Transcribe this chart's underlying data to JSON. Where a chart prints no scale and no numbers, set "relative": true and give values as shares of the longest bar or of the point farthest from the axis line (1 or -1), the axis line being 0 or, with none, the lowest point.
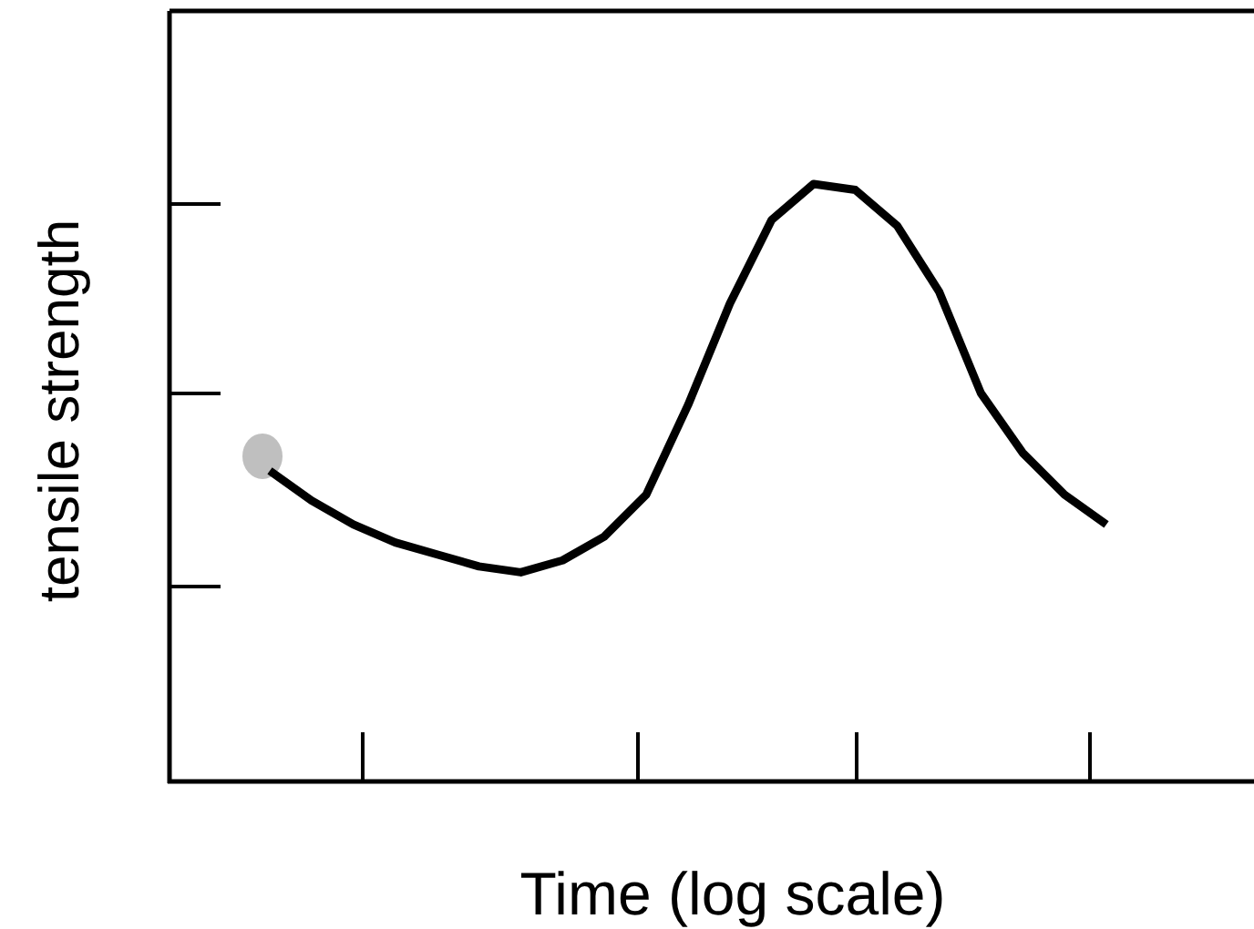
{
  "chart_data": {
    "type": "line",
    "xlabel": "Time (log scale)",
    "ylabel": "tensile strength",
    "relative": true,
    "categories": [
      null,
      null,
      null,
      null,
      null,
      null,
      null,
      null,
      null,
      null,
      null,
      null,
      null,
      null,
      null,
      null,
      null,
      null,
      null,
      null,
      null
    ],
    "series": [
      {
        "color": "#000000",
        "values": [
          0.52,
          0.47,
          0.43,
          0.4,
          0.38,
          0.36,
          0.35,
          0.37,
          0.41,
          0.48,
          0.63,
          0.8,
          0.94,
          1,
          0.99,
          0.93,
          0.82,
          0.65,
          0.55,
          0.48,
          0.43
        ]
      }
    ]
  }
}
